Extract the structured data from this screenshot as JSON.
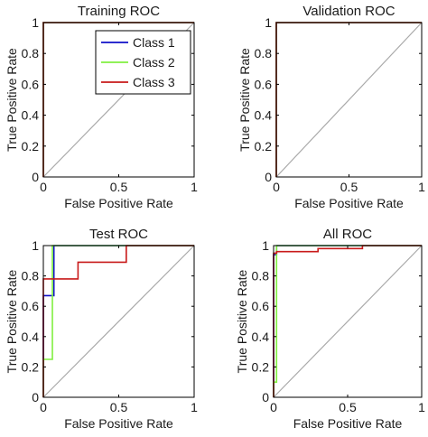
{
  "chart_data": [
    {
      "type": "line",
      "title": "Training ROC",
      "xlabel": "False Positive Rate",
      "ylabel": "True Positive Rate",
      "xlim": [
        0,
        1
      ],
      "ylim": [
        0,
        1
      ],
      "xticks": [
        "0",
        "0.5",
        "1"
      ],
      "yticks": [
        "0",
        "0.2",
        "0.4",
        "0.6",
        "0.8",
        "1"
      ],
      "legend": "top-right",
      "diagonal": true,
      "series": [
        {
          "name": "Class 1",
          "color": "#1010c8",
          "x": [
            0,
            0,
            1
          ],
          "y": [
            0,
            1,
            1
          ]
        },
        {
          "name": "Class 2",
          "color": "#80ef40",
          "x": [
            0,
            0,
            1
          ],
          "y": [
            0,
            1,
            1
          ]
        },
        {
          "name": "Class 3",
          "color": "#c81a1a",
          "x": [
            0,
            0,
            1
          ],
          "y": [
            0,
            1,
            1
          ]
        }
      ]
    },
    {
      "type": "line",
      "title": "Validation ROC",
      "xlabel": "False Positive Rate",
      "ylabel": "True Positive Rate",
      "xlim": [
        0,
        1
      ],
      "ylim": [
        0,
        1
      ],
      "xticks": [
        "0",
        "0.5",
        "1"
      ],
      "yticks": [
        "0",
        "0.2",
        "0.4",
        "0.6",
        "0.8",
        "1"
      ],
      "diagonal": true,
      "series": [
        {
          "color": "#1010c8",
          "x": [
            0,
            0,
            1
          ],
          "y": [
            0,
            1,
            1
          ]
        },
        {
          "color": "#80ef40",
          "x": [
            0,
            0,
            1
          ],
          "y": [
            0,
            1,
            1
          ]
        },
        {
          "color": "#c81a1a",
          "x": [
            0,
            0,
            1
          ],
          "y": [
            0,
            1,
            1
          ]
        }
      ]
    },
    {
      "type": "line",
      "title": "Test ROC",
      "xlabel": "False Positive Rate",
      "ylabel": "True Positive Rate",
      "xlim": [
        0,
        1
      ],
      "ylim": [
        0,
        1
      ],
      "xticks": [
        "0",
        "0.5",
        "1"
      ],
      "yticks": [
        "0",
        "0.2",
        "0.4",
        "0.6",
        "0.8",
        "1"
      ],
      "diagonal": true,
      "series": [
        {
          "color": "#1010c8",
          "x": [
            0,
            0,
            0.07,
            0.07,
            1
          ],
          "y": [
            0,
            0.67,
            0.67,
            1,
            1
          ]
        },
        {
          "color": "#80ef40",
          "x": [
            0,
            0,
            0.06,
            0.06,
            1
          ],
          "y": [
            0,
            0.25,
            0.25,
            1,
            1
          ]
        },
        {
          "color": "#c81a1a",
          "x": [
            0,
            0,
            0.09,
            0.09,
            0.23,
            0.23,
            0.55,
            0.55,
            1
          ],
          "y": [
            0,
            0.78,
            0.78,
            0.78,
            0.78,
            0.89,
            0.89,
            1,
            1
          ]
        }
      ]
    },
    {
      "type": "line",
      "title": "All ROC",
      "xlabel": "False Positive Rate",
      "ylabel": "True Positive Rate",
      "xlim": [
        0,
        1
      ],
      "ylim": [
        0,
        1
      ],
      "xticks": [
        "0",
        "0.5",
        "1"
      ],
      "yticks": [
        "0",
        "0.2",
        "0.4",
        "0.6",
        "0.8",
        "1"
      ],
      "diagonal": true,
      "series": [
        {
          "color": "#1010c8",
          "x": [
            0,
            0,
            0.02,
            0.02,
            1
          ],
          "y": [
            0,
            0.94,
            0.94,
            1,
            1
          ]
        },
        {
          "color": "#80ef40",
          "x": [
            0,
            0,
            0.02,
            0.02,
            1
          ],
          "y": [
            0,
            0.1,
            0.1,
            1,
            1
          ]
        },
        {
          "color": "#c81a1a",
          "x": [
            0,
            0,
            0.02,
            0.02,
            0.3,
            0.3,
            0.6,
            0.6,
            1
          ],
          "y": [
            0,
            0.95,
            0.95,
            0.96,
            0.96,
            0.98,
            0.98,
            1,
            1
          ]
        }
      ]
    }
  ]
}
